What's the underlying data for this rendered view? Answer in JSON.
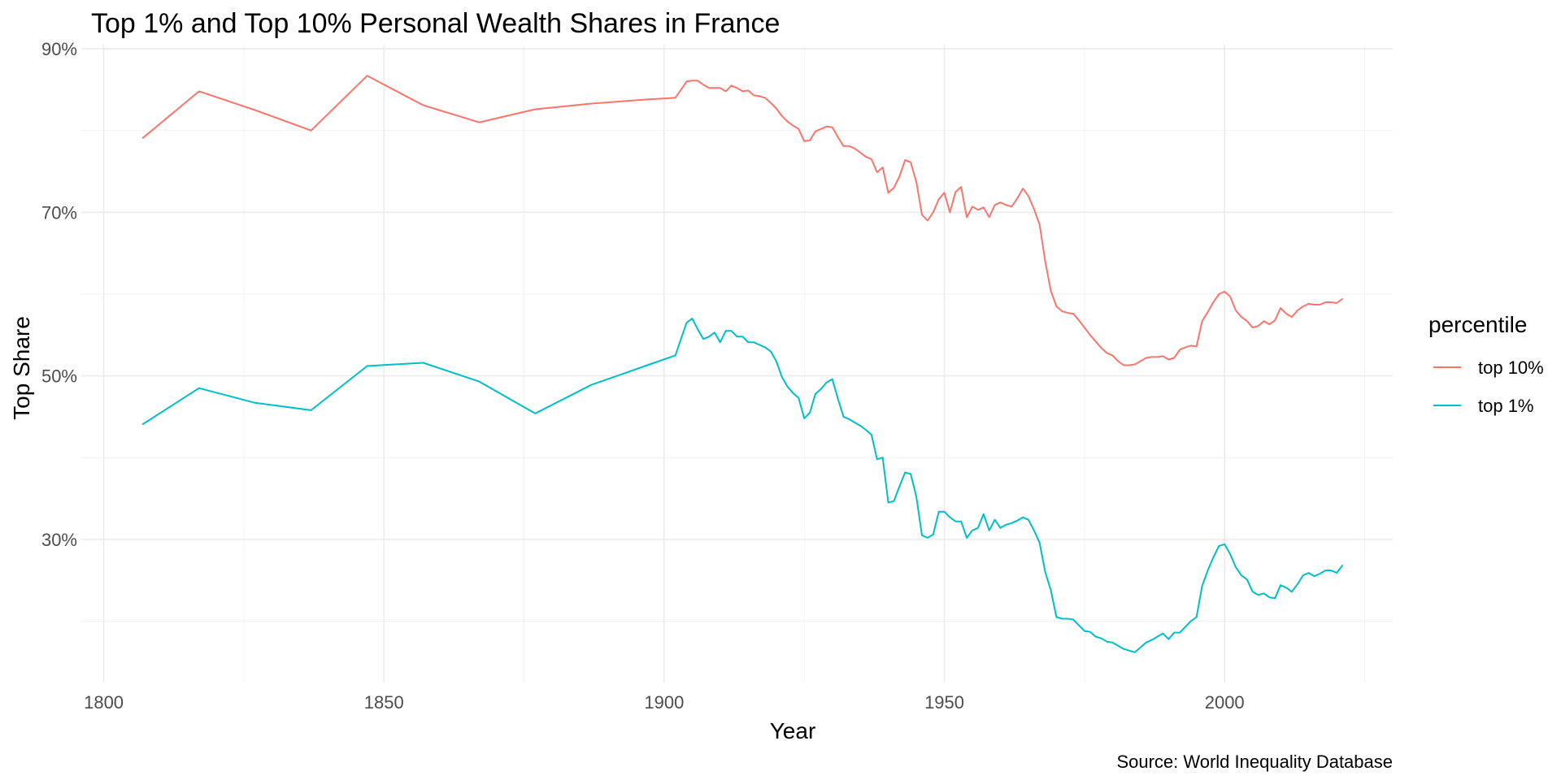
{
  "chart_data": {
    "type": "line",
    "title": "Top 1% and Top 10% Personal Wealth Shares in France",
    "xlabel": "Year",
    "ylabel": "Top Share",
    "caption": "Source: World Inequality Database",
    "xlim": [
      1796,
      2030
    ],
    "ylim": [
      0.125,
      0.905
    ],
    "x_ticks": [
      1800,
      1850,
      1900,
      1950,
      2000
    ],
    "x_tick_labels": [
      "1800",
      "1850",
      "1900",
      "1950",
      "2000"
    ],
    "y_ticks": [
      0.3,
      0.5,
      0.7,
      0.9
    ],
    "y_tick_labels": [
      "30%",
      "50%",
      "70%",
      "90%"
    ],
    "grid": true,
    "legend": {
      "title": "percentile",
      "position": "right"
    },
    "series": [
      {
        "name": "top 10%",
        "color": "#F8766D",
        "points": [
          [
            1807,
            0.791
          ],
          [
            1817,
            0.848
          ],
          [
            1827,
            0.825
          ],
          [
            1837,
            0.8
          ],
          [
            1847,
            0.867
          ],
          [
            1857,
            0.831
          ],
          [
            1867,
            0.81
          ],
          [
            1877,
            0.826
          ],
          [
            1887,
            0.833
          ],
          [
            1897,
            0.838
          ],
          [
            1902,
            0.84
          ],
          [
            1904,
            0.86
          ],
          [
            1905,
            0.861
          ],
          [
            1906,
            0.861
          ],
          [
            1907,
            0.856
          ],
          [
            1908,
            0.852
          ],
          [
            1909,
            0.852
          ],
          [
            1910,
            0.852
          ],
          [
            1911,
            0.848
          ],
          [
            1912,
            0.855
          ],
          [
            1913,
            0.852
          ],
          [
            1914,
            0.848
          ],
          [
            1915,
            0.849
          ],
          [
            1916,
            0.843
          ],
          [
            1917,
            0.842
          ],
          [
            1918,
            0.84
          ],
          [
            1919,
            0.834
          ],
          [
            1920,
            0.827
          ],
          [
            1921,
            0.818
          ],
          [
            1922,
            0.811
          ],
          [
            1923,
            0.806
          ],
          [
            1924,
            0.802
          ],
          [
            1925,
            0.787
          ],
          [
            1926,
            0.788
          ],
          [
            1927,
            0.799
          ],
          [
            1928,
            0.802
          ],
          [
            1929,
            0.805
          ],
          [
            1930,
            0.804
          ],
          [
            1931,
            0.792
          ],
          [
            1932,
            0.781
          ],
          [
            1933,
            0.781
          ],
          [
            1934,
            0.778
          ],
          [
            1935,
            0.773
          ],
          [
            1936,
            0.768
          ],
          [
            1937,
            0.765
          ],
          [
            1938,
            0.749
          ],
          [
            1939,
            0.755
          ],
          [
            1940,
            0.724
          ],
          [
            1941,
            0.73
          ],
          [
            1942,
            0.744
          ],
          [
            1943,
            0.764
          ],
          [
            1944,
            0.761
          ],
          [
            1945,
            0.737
          ],
          [
            1946,
            0.697
          ],
          [
            1947,
            0.69
          ],
          [
            1948,
            0.7
          ],
          [
            1949,
            0.716
          ],
          [
            1950,
            0.724
          ],
          [
            1951,
            0.7
          ],
          [
            1952,
            0.725
          ],
          [
            1953,
            0.731
          ],
          [
            1954,
            0.694
          ],
          [
            1955,
            0.707
          ],
          [
            1956,
            0.703
          ],
          [
            1957,
            0.706
          ],
          [
            1958,
            0.694
          ],
          [
            1959,
            0.709
          ],
          [
            1960,
            0.712
          ],
          [
            1961,
            0.709
          ],
          [
            1962,
            0.707
          ],
          [
            1963,
            0.717
          ],
          [
            1964,
            0.729
          ],
          [
            1965,
            0.72
          ],
          [
            1966,
            0.704
          ],
          [
            1967,
            0.685
          ],
          [
            1968,
            0.64
          ],
          [
            1969,
            0.604
          ],
          [
            1970,
            0.585
          ],
          [
            1971,
            0.579
          ],
          [
            1972,
            0.577
          ],
          [
            1973,
            0.576
          ],
          [
            1974,
            0.568
          ],
          [
            1975,
            0.559
          ],
          [
            1976,
            0.55
          ],
          [
            1977,
            0.542
          ],
          [
            1978,
            0.534
          ],
          [
            1979,
            0.528
          ],
          [
            1980,
            0.525
          ],
          [
            1981,
            0.518
          ],
          [
            1982,
            0.513
          ],
          [
            1983,
            0.513
          ],
          [
            1984,
            0.514
          ],
          [
            1985,
            0.518
          ],
          [
            1986,
            0.522
          ],
          [
            1987,
            0.523
          ],
          [
            1988,
            0.523
          ],
          [
            1989,
            0.524
          ],
          [
            1990,
            0.52
          ],
          [
            1991,
            0.522
          ],
          [
            1992,
            0.532
          ],
          [
            1993,
            0.535
          ],
          [
            1994,
            0.537
          ],
          [
            1995,
            0.536
          ],
          [
            1996,
            0.567
          ],
          [
            1997,
            0.578
          ],
          [
            1998,
            0.59
          ],
          [
            1999,
            0.6
          ],
          [
            2000,
            0.603
          ],
          [
            2001,
            0.597
          ],
          [
            2002,
            0.58
          ],
          [
            2003,
            0.572
          ],
          [
            2004,
            0.567
          ],
          [
            2005,
            0.559
          ],
          [
            2006,
            0.561
          ],
          [
            2007,
            0.567
          ],
          [
            2008,
            0.563
          ],
          [
            2009,
            0.568
          ],
          [
            2010,
            0.583
          ],
          [
            2011,
            0.576
          ],
          [
            2012,
            0.572
          ],
          [
            2013,
            0.58
          ],
          [
            2014,
            0.585
          ],
          [
            2015,
            0.588
          ],
          [
            2016,
            0.587
          ],
          [
            2017,
            0.587
          ],
          [
            2018,
            0.59
          ],
          [
            2019,
            0.59
          ],
          [
            2020,
            0.589
          ],
          [
            2021,
            0.594
          ]
        ]
      },
      {
        "name": "top 1%",
        "color": "#00BFC4",
        "points": [
          [
            1807,
            0.441
          ],
          [
            1817,
            0.485
          ],
          [
            1827,
            0.467
          ],
          [
            1837,
            0.458
          ],
          [
            1847,
            0.512
          ],
          [
            1857,
            0.516
          ],
          [
            1867,
            0.493
          ],
          [
            1877,
            0.454
          ],
          [
            1887,
            0.489
          ],
          [
            1897,
            0.513
          ],
          [
            1902,
            0.525
          ],
          [
            1904,
            0.565
          ],
          [
            1905,
            0.57
          ],
          [
            1906,
            0.557
          ],
          [
            1907,
            0.545
          ],
          [
            1908,
            0.548
          ],
          [
            1909,
            0.553
          ],
          [
            1910,
            0.541
          ],
          [
            1911,
            0.555
          ],
          [
            1912,
            0.555
          ],
          [
            1913,
            0.548
          ],
          [
            1914,
            0.548
          ],
          [
            1915,
            0.541
          ],
          [
            1916,
            0.541
          ],
          [
            1917,
            0.538
          ],
          [
            1918,
            0.535
          ],
          [
            1919,
            0.53
          ],
          [
            1920,
            0.518
          ],
          [
            1921,
            0.499
          ],
          [
            1922,
            0.487
          ],
          [
            1923,
            0.479
          ],
          [
            1924,
            0.473
          ],
          [
            1925,
            0.448
          ],
          [
            1926,
            0.455
          ],
          [
            1927,
            0.478
          ],
          [
            1928,
            0.484
          ],
          [
            1929,
            0.492
          ],
          [
            1930,
            0.496
          ],
          [
            1931,
            0.472
          ],
          [
            1932,
            0.45
          ],
          [
            1933,
            0.447
          ],
          [
            1934,
            0.443
          ],
          [
            1935,
            0.439
          ],
          [
            1936,
            0.434
          ],
          [
            1937,
            0.428
          ],
          [
            1938,
            0.398
          ],
          [
            1939,
            0.4
          ],
          [
            1940,
            0.345
          ],
          [
            1941,
            0.347
          ],
          [
            1942,
            0.365
          ],
          [
            1943,
            0.382
          ],
          [
            1944,
            0.38
          ],
          [
            1945,
            0.352
          ],
          [
            1946,
            0.305
          ],
          [
            1947,
            0.302
          ],
          [
            1948,
            0.306
          ],
          [
            1949,
            0.334
          ],
          [
            1950,
            0.334
          ],
          [
            1951,
            0.327
          ],
          [
            1952,
            0.322
          ],
          [
            1953,
            0.322
          ],
          [
            1954,
            0.302
          ],
          [
            1955,
            0.311
          ],
          [
            1956,
            0.314
          ],
          [
            1957,
            0.331
          ],
          [
            1958,
            0.311
          ],
          [
            1959,
            0.324
          ],
          [
            1960,
            0.314
          ],
          [
            1961,
            0.318
          ],
          [
            1962,
            0.32
          ],
          [
            1963,
            0.323
          ],
          [
            1964,
            0.327
          ],
          [
            1965,
            0.324
          ],
          [
            1966,
            0.311
          ],
          [
            1967,
            0.296
          ],
          [
            1968,
            0.26
          ],
          [
            1969,
            0.238
          ],
          [
            1970,
            0.205
          ],
          [
            1971,
            0.203
          ],
          [
            1972,
            0.203
          ],
          [
            1973,
            0.202
          ],
          [
            1974,
            0.195
          ],
          [
            1975,
            0.188
          ],
          [
            1976,
            0.187
          ],
          [
            1977,
            0.181
          ],
          [
            1978,
            0.179
          ],
          [
            1979,
            0.175
          ],
          [
            1980,
            0.174
          ],
          [
            1981,
            0.17
          ],
          [
            1982,
            0.166
          ],
          [
            1983,
            0.164
          ],
          [
            1984,
            0.162
          ],
          [
            1985,
            0.168
          ],
          [
            1986,
            0.174
          ],
          [
            1987,
            0.177
          ],
          [
            1988,
            0.181
          ],
          [
            1989,
            0.185
          ],
          [
            1990,
            0.178
          ],
          [
            1991,
            0.186
          ],
          [
            1992,
            0.186
          ],
          [
            1993,
            0.193
          ],
          [
            1994,
            0.2
          ],
          [
            1995,
            0.205
          ],
          [
            1996,
            0.243
          ],
          [
            1997,
            0.262
          ],
          [
            1998,
            0.278
          ],
          [
            1999,
            0.292
          ],
          [
            2000,
            0.294
          ],
          [
            2001,
            0.282
          ],
          [
            2002,
            0.266
          ],
          [
            2003,
            0.256
          ],
          [
            2004,
            0.251
          ],
          [
            2005,
            0.236
          ],
          [
            2006,
            0.232
          ],
          [
            2007,
            0.234
          ],
          [
            2008,
            0.229
          ],
          [
            2009,
            0.228
          ],
          [
            2010,
            0.244
          ],
          [
            2011,
            0.241
          ],
          [
            2012,
            0.236
          ],
          [
            2013,
            0.245
          ],
          [
            2014,
            0.256
          ],
          [
            2015,
            0.259
          ],
          [
            2016,
            0.255
          ],
          [
            2017,
            0.258
          ],
          [
            2018,
            0.262
          ],
          [
            2019,
            0.262
          ],
          [
            2020,
            0.259
          ],
          [
            2021,
            0.268
          ]
        ]
      }
    ]
  }
}
